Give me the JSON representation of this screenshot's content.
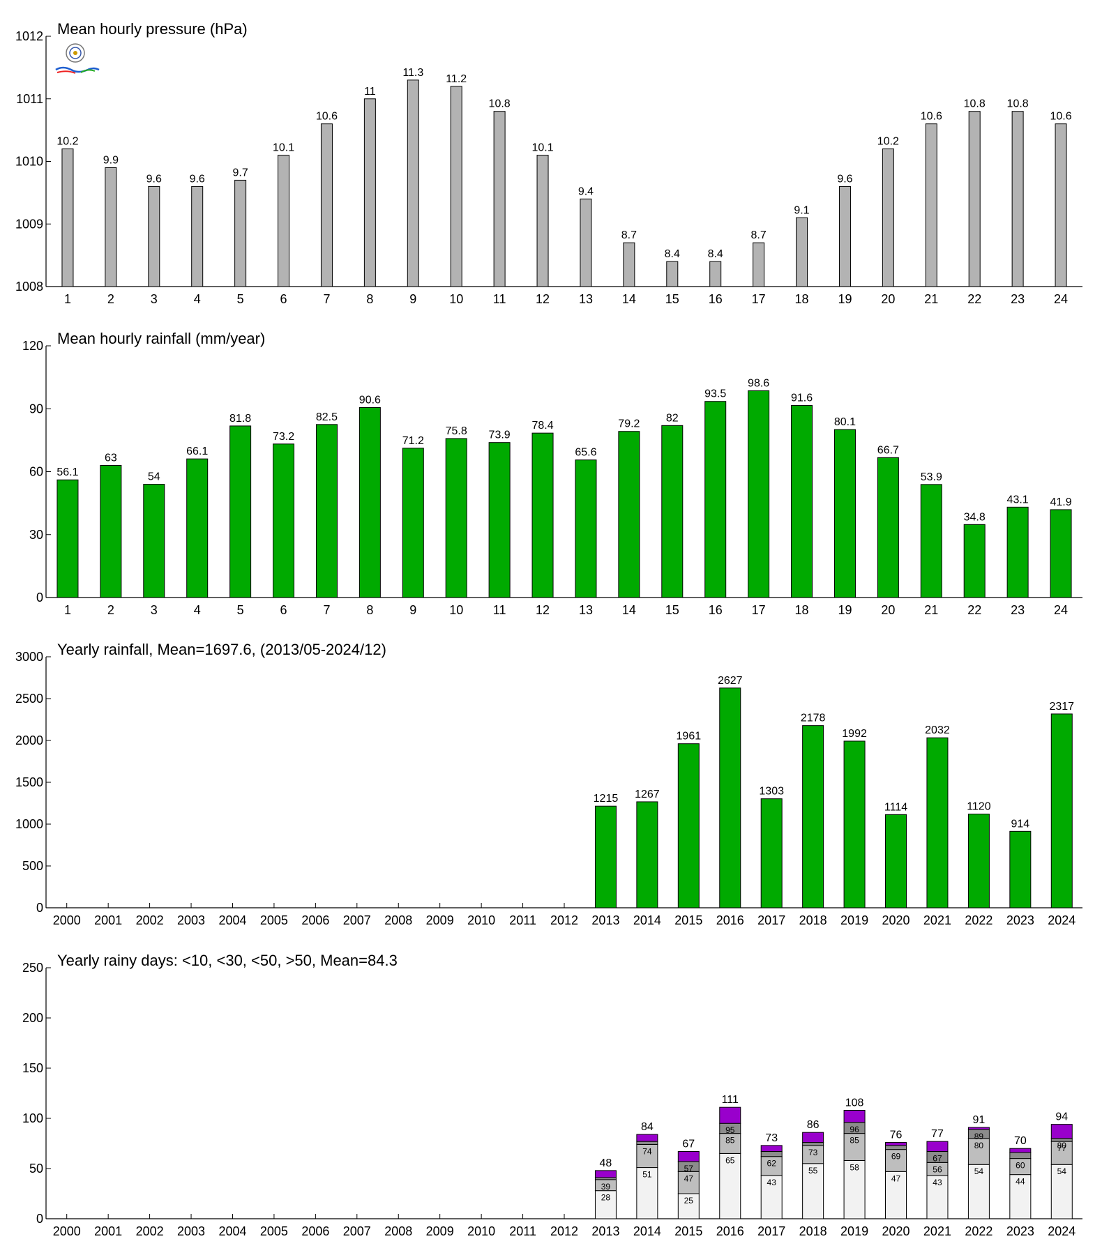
{
  "colors": {
    "pressure": "#b3b3b3",
    "rain": "#00aa00",
    "seg_lt10": "#f2f2f2",
    "seg_lt30": "#bebebe",
    "seg_lt50": "#8c8c8c",
    "seg_gt50": "#9900cc"
  },
  "chart_data": [
    {
      "type": "bar",
      "title": "Mean hourly pressure (hPa)",
      "categories": [
        "1",
        "2",
        "3",
        "4",
        "5",
        "6",
        "7",
        "8",
        "9",
        "10",
        "11",
        "12",
        "13",
        "14",
        "15",
        "16",
        "17",
        "18",
        "19",
        "20",
        "21",
        "22",
        "23",
        "24"
      ],
      "values": [
        1010.2,
        1009.9,
        1009.6,
        1009.6,
        1009.7,
        1010.1,
        1010.6,
        1011.0,
        1011.3,
        1011.2,
        1010.8,
        1010.1,
        1009.4,
        1008.7,
        1008.4,
        1008.4,
        1008.7,
        1009.1,
        1009.6,
        1010.2,
        1010.6,
        1010.8,
        1010.8,
        1010.6
      ],
      "labels": [
        "10.2",
        "9.9",
        "9.6",
        "9.6",
        "9.7",
        "10.1",
        "10.6",
        "11",
        "11.3",
        "11.2",
        "10.8",
        "10.1",
        "9.4",
        "8.7",
        "8.4",
        "8.4",
        "8.7",
        "9.1",
        "9.6",
        "10.2",
        "10.6",
        "10.8",
        "10.8",
        "10.6"
      ],
      "ylim": [
        1008,
        1012
      ],
      "yticks": [
        "1008",
        "1009",
        "1010",
        "1011",
        "1012"
      ]
    },
    {
      "type": "bar",
      "title": "Mean hourly rainfall (mm/year)",
      "categories": [
        "1",
        "2",
        "3",
        "4",
        "5",
        "6",
        "7",
        "8",
        "9",
        "10",
        "11",
        "12",
        "13",
        "14",
        "15",
        "16",
        "17",
        "18",
        "19",
        "20",
        "21",
        "22",
        "23",
        "24"
      ],
      "values": [
        56.1,
        63,
        54,
        66.1,
        81.8,
        73.2,
        82.5,
        90.6,
        71.2,
        75.8,
        73.9,
        78.4,
        65.6,
        79.2,
        82,
        93.5,
        98.6,
        91.6,
        80.1,
        66.7,
        53.9,
        34.8,
        43.1,
        41.9
      ],
      "labels": [
        "56.1",
        "63",
        "54",
        "66.1",
        "81.8",
        "73.2",
        "82.5",
        "90.6",
        "71.2",
        "75.8",
        "73.9",
        "78.4",
        "65.6",
        "79.2",
        "82",
        "93.5",
        "98.6",
        "91.6",
        "80.1",
        "66.7",
        "53.9",
        "34.8",
        "43.1",
        "41.9"
      ],
      "ylim": [
        0,
        120
      ],
      "yticks": [
        "0",
        "30",
        "60",
        "90",
        "120"
      ]
    },
    {
      "type": "bar",
      "title": "Yearly rainfall, Mean=1697.6, (2013/05-2024/12)",
      "categories": [
        "2000",
        "2001",
        "2002",
        "2003",
        "2004",
        "2005",
        "2006",
        "2007",
        "2008",
        "2009",
        "2010",
        "2011",
        "2012",
        "2013",
        "2014",
        "2015",
        "2016",
        "2017",
        "2018",
        "2019",
        "2020",
        "2021",
        "2022",
        "2023",
        "2024"
      ],
      "values": [
        null,
        null,
        null,
        null,
        null,
        null,
        null,
        null,
        null,
        null,
        null,
        null,
        null,
        1215,
        1267,
        1961,
        2627,
        1303,
        2178,
        1992,
        1114,
        2032,
        1120,
        914,
        2317
      ],
      "labels": [
        "",
        "",
        "",
        "",
        "",
        "",
        "",
        "",
        "",
        "",
        "",
        "",
        "",
        "1215",
        "1267",
        "1961",
        "2627",
        "1303",
        "2178",
        "1992",
        "1114",
        "2032",
        "1120",
        "914",
        "2317"
      ],
      "ylim": [
        0,
        3000
      ],
      "yticks": [
        "0",
        "500",
        "1000",
        "1500",
        "2000",
        "2500",
        "3000"
      ]
    },
    {
      "type": "bar",
      "stacked": true,
      "title": "Yearly rainy days: <10, <30, <50, >50, Mean=84.3",
      "categories": [
        "2000",
        "2001",
        "2002",
        "2003",
        "2004",
        "2005",
        "2006",
        "2007",
        "2008",
        "2009",
        "2010",
        "2011",
        "2012",
        "2013",
        "2014",
        "2015",
        "2016",
        "2017",
        "2018",
        "2019",
        "2020",
        "2021",
        "2022",
        "2023",
        "2024"
      ],
      "cumulative": {
        "lt10": [
          null,
          null,
          null,
          null,
          null,
          null,
          null,
          null,
          null,
          null,
          null,
          null,
          null,
          28,
          51,
          25,
          65,
          43,
          55,
          58,
          47,
          43,
          54,
          44,
          54
        ],
        "lt30": [
          null,
          null,
          null,
          null,
          null,
          null,
          null,
          null,
          null,
          null,
          null,
          null,
          null,
          39,
          74,
          47,
          85,
          62,
          73,
          85,
          69,
          56,
          80,
          60,
          77
        ],
        "lt50": [
          null,
          null,
          null,
          null,
          null,
          null,
          null,
          null,
          null,
          null,
          null,
          null,
          null,
          41,
          77,
          57,
          95,
          67,
          76,
          96,
          73,
          67,
          89,
          66,
          80
        ],
        "total": [
          null,
          null,
          null,
          null,
          null,
          null,
          null,
          null,
          null,
          null,
          null,
          null,
          null,
          48,
          84,
          67,
          111,
          73,
          86,
          108,
          76,
          77,
          91,
          70,
          94
        ]
      },
      "seg_labels": {
        "lt10": [
          "",
          "",
          "",
          "",
          "",
          "",
          "",
          "",
          "",
          "",
          "",
          "",
          "",
          "28",
          "51",
          "25",
          "65",
          "43",
          "55",
          "58",
          "47",
          "43",
          "54",
          "44",
          "54"
        ],
        "lt30": [
          "",
          "",
          "",
          "",
          "",
          "",
          "",
          "",
          "",
          "",
          "",
          "",
          "",
          "39",
          "74",
          "47",
          "85",
          "62",
          "73",
          "85",
          "69",
          "56",
          "80",
          "60",
          "77"
        ],
        "lt50": [
          "",
          "",
          "",
          "",
          "",
          "",
          "",
          "",
          "",
          "",
          "",
          "",
          "",
          "",
          "",
          "57",
          "95",
          "",
          "",
          "96",
          "",
          "67",
          "89",
          "",
          "80"
        ],
        "total": [
          "",
          "",
          "",
          "",
          "",
          "",
          "",
          "",
          "",
          "",
          "",
          "",
          "",
          "48",
          "84",
          "67",
          "111",
          "73",
          "86",
          "108",
          "76",
          "77",
          "91",
          "70",
          "94"
        ]
      },
      "ylim": [
        0,
        250
      ],
      "yticks": [
        "0",
        "50",
        "100",
        "150",
        "200",
        "250"
      ]
    }
  ]
}
